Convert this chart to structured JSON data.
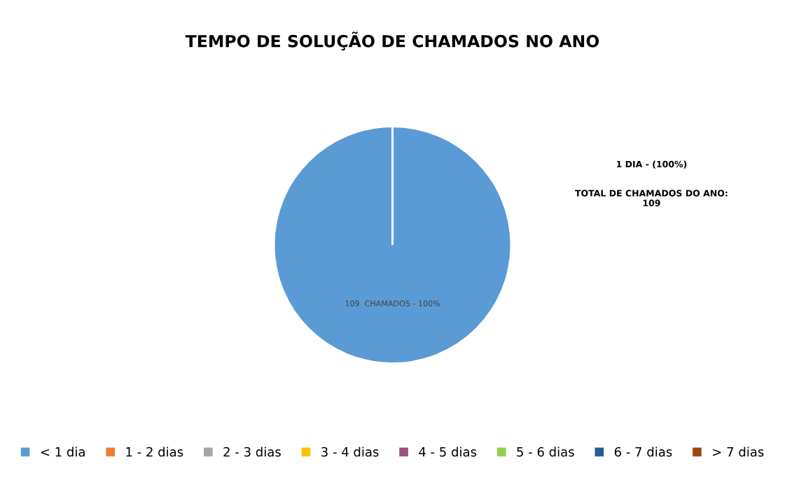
{
  "chart_data": {
    "type": "pie",
    "title": "TEMPO DE SOLUÇÃO DE CHAMADOS NO ANO",
    "categories": [
      "< 1 dia",
      "1 - 2 dias",
      "2 - 3 dias",
      "3 - 4 dias",
      "4 - 5 dias",
      "5 - 6 dias",
      "6 - 7 dias",
      "> 7 dias"
    ],
    "values": [
      109,
      0,
      0,
      0,
      0,
      0,
      0,
      0
    ],
    "colors": [
      "#5b9bd5",
      "#ed7d31",
      "#a5a5a5",
      "#ffc000",
      "#9e5078",
      "#92d050",
      "#255e91",
      "#9e480e"
    ],
    "value_labels": [
      "109  CHAMADOS - 100%",
      null,
      null,
      null,
      null,
      null,
      null,
      null
    ],
    "annotations": [
      "1 DIA - (100%)",
      "TOTAL DE CHAMADOS DO ANO:\n109"
    ],
    "legend": "bottom"
  }
}
